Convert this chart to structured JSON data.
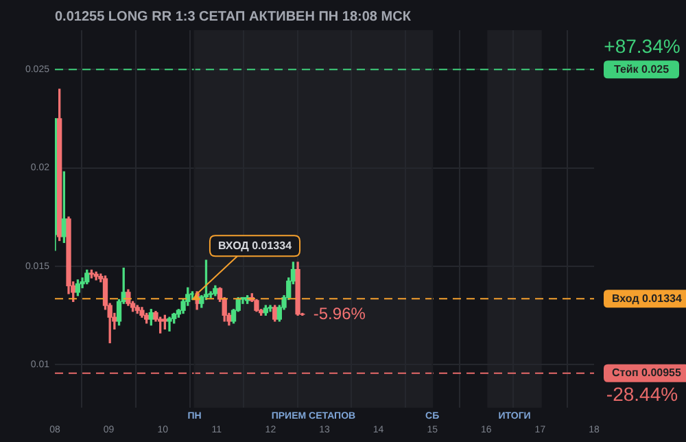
{
  "chart_data": {
    "type": "candlestick",
    "title": "0.01255 LONG RR 1:3 СЕТАП АКТИВЕН ПН 18:08 МСК",
    "x": [
      8.0,
      8.085,
      8.17,
      8.255,
      8.34,
      8.425,
      8.51,
      8.595,
      8.68,
      8.765,
      8.85,
      8.935,
      9.02,
      9.105,
      9.19,
      9.275,
      9.36,
      9.445,
      9.53,
      9.615,
      9.7,
      9.785,
      9.87,
      9.955,
      10.04,
      10.125,
      10.21,
      10.295,
      10.38,
      10.465,
      10.55,
      10.635,
      10.72,
      10.805,
      10.89,
      10.975,
      11.06,
      11.145,
      11.23,
      11.315,
      11.4,
      11.485,
      11.57,
      11.655,
      11.74,
      11.825,
      11.91,
      11.995,
      12.08,
      12.165,
      12.25,
      12.335,
      12.42,
      12.505,
      12.59
    ],
    "ohlc": [
      [
        0.0166,
        0.0225,
        0.0158,
        0.0225
      ],
      [
        0.0225,
        0.024,
        0.0163,
        0.0165
      ],
      [
        0.0165,
        0.0198,
        0.0162,
        0.0174
      ],
      [
        0.0174,
        0.0175,
        0.0136,
        0.014
      ],
      [
        0.014,
        0.0142,
        0.0132,
        0.01367
      ],
      [
        0.01367,
        0.0143,
        0.0135,
        0.0141
      ],
      [
        0.0141,
        0.0144,
        0.0139,
        0.0142
      ],
      [
        0.0142,
        0.0148,
        0.0141,
        0.01464
      ],
      [
        0.01464,
        0.0148,
        0.0144,
        0.01459
      ],
      [
        0.01459,
        0.0147,
        0.0143,
        0.01448
      ],
      [
        0.01448,
        0.0146,
        0.0142,
        0.01436
      ],
      [
        0.01436,
        0.0145,
        0.0128,
        0.013
      ],
      [
        0.013,
        0.0131,
        0.0111,
        0.0124
      ],
      [
        0.0124,
        0.0126,
        0.0118,
        0.0122
      ],
      [
        0.0122,
        0.0133,
        0.012,
        0.0132
      ],
      [
        0.0132,
        0.0149,
        0.0131,
        0.01367
      ],
      [
        0.01367,
        0.0138,
        0.013,
        0.0131
      ],
      [
        0.0131,
        0.0132,
        0.0127,
        0.0129
      ],
      [
        0.0129,
        0.013,
        0.0126,
        0.01275
      ],
      [
        0.01275,
        0.0129,
        0.0124,
        0.0125
      ],
      [
        0.0125,
        0.0126,
        0.0121,
        0.0123
      ],
      [
        0.0123,
        0.0128,
        0.012,
        0.01263
      ],
      [
        0.01263,
        0.0127,
        0.0122,
        0.0123
      ],
      [
        0.0123,
        0.0124,
        0.0116,
        0.0122
      ],
      [
        0.0123,
        0.0125,
        0.0118,
        0.0122
      ],
      [
        0.0122,
        0.0124,
        0.0117,
        0.01233
      ],
      [
        0.01233,
        0.0126,
        0.0121,
        0.01256
      ],
      [
        0.01256,
        0.0128,
        0.0124,
        0.01275
      ],
      [
        0.01275,
        0.0133,
        0.0126,
        0.0132
      ],
      [
        0.0132,
        0.0139,
        0.013,
        0.01356
      ],
      [
        0.01356,
        0.0137,
        0.0133,
        0.0136
      ],
      [
        0.0136,
        0.0137,
        0.0128,
        0.0131
      ],
      [
        0.0131,
        0.0135,
        0.0129,
        0.01344
      ],
      [
        0.01344,
        0.0153,
        0.0133,
        0.01356
      ],
      [
        0.01356,
        0.0137,
        0.0134,
        0.0136
      ],
      [
        0.0136,
        0.014,
        0.0135,
        0.01386
      ],
      [
        0.01386,
        0.0139,
        0.0132,
        0.01332
      ],
      [
        0.01332,
        0.0134,
        0.0122,
        0.0125
      ],
      [
        0.0125,
        0.0126,
        0.012,
        0.0122
      ],
      [
        0.0122,
        0.0128,
        0.0121,
        0.01275
      ],
      [
        0.01275,
        0.0134,
        0.0127,
        0.01332
      ],
      [
        0.01332,
        0.0134,
        0.0131,
        0.0134
      ],
      [
        0.01325,
        0.0135,
        0.0131,
        0.0134
      ],
      [
        0.0134,
        0.0136,
        0.0132,
        0.01325
      ],
      [
        0.01325,
        0.0133,
        0.0127,
        0.01275
      ],
      [
        0.01275,
        0.0128,
        0.0125,
        0.01263
      ],
      [
        0.01263,
        0.013,
        0.0125,
        0.01286
      ],
      [
        0.01286,
        0.013,
        0.0127,
        0.0129
      ],
      [
        0.0129,
        0.013,
        0.0122,
        0.0123
      ],
      [
        0.0123,
        0.013,
        0.0122,
        0.0129
      ],
      [
        0.0129,
        0.0135,
        0.0128,
        0.0134
      ],
      [
        0.0134,
        0.0144,
        0.0133,
        0.01424
      ],
      [
        0.01424,
        0.0152,
        0.0141,
        0.01483
      ],
      [
        0.01483,
        0.0152,
        0.0125,
        0.01256
      ],
      [
        0.01256,
        0.0126,
        0.0125,
        0.01255
      ]
    ],
    "xlim": [
      8,
      18
    ],
    "xticks": [
      {
        "value": 8,
        "label": "08"
      },
      {
        "value": 9,
        "label": "09"
      },
      10,
      11,
      12,
      13,
      14,
      15,
      16,
      17,
      18
    ],
    "ylim": [
      0.0078,
      0.027
    ],
    "yticks": [
      0.01,
      0.015,
      0.02,
      0.025
    ],
    "grid": true,
    "legend": false,
    "ref_lines": [
      {
        "axis": "y",
        "value": 0.025,
        "label": "Тейк 0.025",
        "color": "#3ecf7a",
        "line_style": "dashed"
      },
      {
        "axis": "y",
        "value": 0.01334,
        "label": "Вход 0.01334",
        "color": "#f5a02e",
        "line_style": "dashed"
      },
      {
        "axis": "y",
        "value": 0.00955,
        "label": "Стоп 0.00955",
        "color": "#e86a6a",
        "line_style": "dashed"
      },
      {
        "axis": "x",
        "value": 10.59,
        "label": "ПН",
        "color": "#1d1e23",
        "line_style": "solid"
      },
      {
        "axis": "x",
        "value": 15.0,
        "label": "СБ",
        "color": "#1d1e23",
        "line_style": "solid"
      }
    ],
    "bands": [
      {
        "axis": "x",
        "from": 10.59,
        "to": 15.0,
        "label": "ПРИЕМ СЕТАПОВ",
        "color": "#1d1e23"
      },
      {
        "axis": "x",
        "from": 16.02,
        "to": 17.03,
        "label": "ИТОГИ",
        "color": "#1d1e23"
      }
    ],
    "annotations": [
      "+87.34%",
      "-28.44%",
      {
        "text": "ВХОД 0.01334",
        "x": 10.62,
        "y": 0.01334
      },
      {
        "text": "-5.96%",
        "x": 12.59,
        "y": 0.01255
      }
    ]
  }
}
